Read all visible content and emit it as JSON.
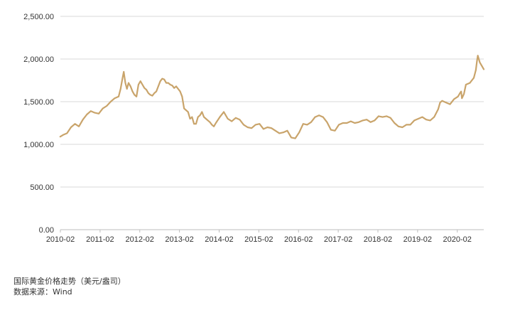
{
  "chart_data": {
    "type": "line",
    "title": "国际黄金价格走势（美元/盎司）",
    "source": "数据来源：Wind",
    "xlabel": "",
    "ylabel": "",
    "ylim": [
      0,
      2500
    ],
    "grid": true,
    "line_color": "#c9a46b",
    "grid_color": "#d9d9d9",
    "yticks": [
      {
        "value": 0,
        "label": "0.00"
      },
      {
        "value": 500,
        "label": "500.00"
      },
      {
        "value": 1000,
        "label": "1,000.00"
      },
      {
        "value": 1500,
        "label": "1,500.00"
      },
      {
        "value": 2000,
        "label": "2,000.00"
      },
      {
        "value": 2500,
        "label": "2,500.00"
      }
    ],
    "xticks": [
      {
        "value": 2010.083,
        "label": "2010-02"
      },
      {
        "value": 2011.083,
        "label": "2011-02"
      },
      {
        "value": 2012.083,
        "label": "2012-02"
      },
      {
        "value": 2013.083,
        "label": "2013-02"
      },
      {
        "value": 2014.083,
        "label": "2014-02"
      },
      {
        "value": 2015.083,
        "label": "2015-02"
      },
      {
        "value": 2016.083,
        "label": "2016-02"
      },
      {
        "value": 2017.083,
        "label": "2017-02"
      },
      {
        "value": 2018.083,
        "label": "2018-02"
      },
      {
        "value": 2019.083,
        "label": "2019-02"
      },
      {
        "value": 2020.083,
        "label": "2020-02"
      }
    ],
    "xlim": [
      2010.083,
      2020.75
    ],
    "series": [
      {
        "name": "国际黄金价格",
        "x": [
          2010.08,
          2010.15,
          2010.25,
          2010.35,
          2010.45,
          2010.55,
          2010.65,
          2010.75,
          2010.85,
          2010.95,
          2011.05,
          2011.15,
          2011.25,
          2011.35,
          2011.45,
          2011.55,
          2011.6,
          2011.65,
          2011.68,
          2011.72,
          2011.76,
          2011.8,
          2011.85,
          2011.9,
          2011.95,
          2012.0,
          2012.05,
          2012.1,
          2012.15,
          2012.2,
          2012.25,
          2012.3,
          2012.35,
          2012.4,
          2012.45,
          2012.5,
          2012.55,
          2012.6,
          2012.65,
          2012.7,
          2012.75,
          2012.8,
          2012.85,
          2012.9,
          2012.95,
          2013.0,
          2013.05,
          2013.1,
          2013.15,
          2013.2,
          2013.25,
          2013.3,
          2013.35,
          2013.4,
          2013.45,
          2013.5,
          2013.55,
          2013.6,
          2013.65,
          2013.7,
          2013.75,
          2013.8,
          2013.85,
          2013.9,
          2013.95,
          2014.0,
          2014.1,
          2014.2,
          2014.3,
          2014.4,
          2014.5,
          2014.6,
          2014.7,
          2014.8,
          2014.9,
          2015.0,
          2015.1,
          2015.2,
          2015.3,
          2015.4,
          2015.5,
          2015.6,
          2015.7,
          2015.8,
          2015.9,
          2016.0,
          2016.1,
          2016.2,
          2016.3,
          2016.4,
          2016.5,
          2016.6,
          2016.7,
          2016.8,
          2016.9,
          2017.0,
          2017.1,
          2017.2,
          2017.3,
          2017.4,
          2017.5,
          2017.6,
          2017.7,
          2017.8,
          2017.9,
          2018.0,
          2018.1,
          2018.2,
          2018.3,
          2018.4,
          2018.5,
          2018.6,
          2018.7,
          2018.8,
          2018.9,
          2019.0,
          2019.1,
          2019.2,
          2019.3,
          2019.4,
          2019.5,
          2019.6,
          2019.65,
          2019.7,
          2019.8,
          2019.9,
          2020.0,
          2020.1,
          2020.15,
          2020.18,
          2020.2,
          2020.25,
          2020.3,
          2020.4,
          2020.45,
          2020.5,
          2020.55,
          2020.58,
          2020.6,
          2020.65,
          2020.7,
          2020.75
        ],
        "values": [
          1090,
          1110,
          1130,
          1200,
          1240,
          1210,
          1290,
          1350,
          1390,
          1370,
          1360,
          1420,
          1450,
          1500,
          1540,
          1560,
          1650,
          1780,
          1850,
          1720,
          1650,
          1720,
          1680,
          1620,
          1580,
          1560,
          1700,
          1740,
          1700,
          1660,
          1640,
          1600,
          1580,
          1570,
          1600,
          1620,
          1680,
          1740,
          1770,
          1760,
          1720,
          1720,
          1700,
          1690,
          1660,
          1680,
          1650,
          1620,
          1560,
          1420,
          1400,
          1380,
          1300,
          1320,
          1240,
          1240,
          1320,
          1340,
          1380,
          1320,
          1300,
          1280,
          1260,
          1230,
          1210,
          1250,
          1320,
          1380,
          1300,
          1270,
          1310,
          1290,
          1230,
          1200,
          1190,
          1230,
          1240,
          1180,
          1200,
          1190,
          1160,
          1130,
          1140,
          1160,
          1080,
          1070,
          1140,
          1240,
          1230,
          1260,
          1320,
          1340,
          1320,
          1260,
          1170,
          1160,
          1230,
          1250,
          1250,
          1270,
          1250,
          1260,
          1280,
          1290,
          1260,
          1280,
          1330,
          1320,
          1330,
          1310,
          1250,
          1210,
          1200,
          1230,
          1230,
          1280,
          1300,
          1320,
          1290,
          1280,
          1320,
          1410,
          1490,
          1510,
          1490,
          1470,
          1530,
          1560,
          1600,
          1620,
          1540,
          1590,
          1700,
          1720,
          1750,
          1780,
          1870,
          1980,
          2040,
          1960,
          1920,
          1880
        ]
      }
    ]
  }
}
